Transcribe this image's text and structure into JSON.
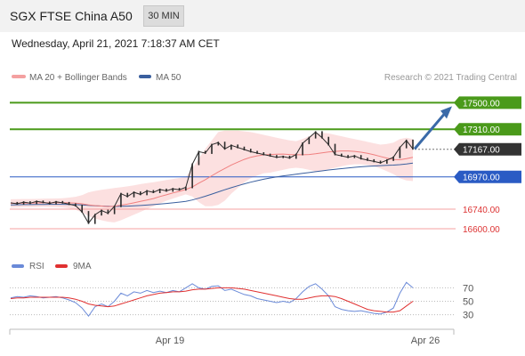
{
  "header": {
    "title": "SGX FTSE China A50",
    "timeframe_button": "30 MIN",
    "datetime": "Wednesday, April 21, 2021 7:18:37 AM CET"
  },
  "legend": {
    "ma20_bollinger": "MA 20 + Bollinger Bands",
    "ma50": "MA 50",
    "credit": "Research © 2021 Trading Central"
  },
  "rsi_legend": {
    "rsi": "RSI",
    "ma9": "9MA"
  },
  "colors": {
    "price": "#555555",
    "ma20": "#f08080",
    "band_fill": "#fbd5d5",
    "ma50": "#3a5f9e",
    "resistance": "#4a9a1a",
    "support": "#2a5bc4",
    "target_low": "#f4a0a0",
    "current": "#333333",
    "arrow": "#3a6aa8",
    "rsi": "#6a8ad8",
    "rsi_ma": "#e03030"
  },
  "chart_data": [
    {
      "type": "line",
      "title": "",
      "x_labels": [
        "Apr 19",
        "Apr 26"
      ],
      "levels": [
        {
          "value": 17500,
          "label": "17500.00",
          "kind": "resistance"
        },
        {
          "value": 17310,
          "label": "17310.00",
          "kind": "resistance"
        },
        {
          "value": 17167,
          "label": "17167.00",
          "kind": "current"
        },
        {
          "value": 16970,
          "label": "16970.00",
          "kind": "support"
        },
        {
          "value": 16740,
          "label": "16740.00",
          "kind": "target_low"
        },
        {
          "value": 16600,
          "label": "16600.00",
          "kind": "target_low"
        }
      ],
      "ylim": [
        16530,
        17610
      ],
      "series": [
        {
          "name": "Price",
          "values": [
            16785,
            16778,
            16790,
            16782,
            16795,
            16788,
            16780,
            16792,
            16785,
            16775,
            16765,
            16720,
            16640,
            16700,
            16730,
            16710,
            16760,
            16850,
            16830,
            16860,
            16845,
            16870,
            16860,
            16880,
            16870,
            16885,
            16878,
            16895,
            17060,
            17150,
            17140,
            17200,
            17215,
            17170,
            17195,
            17180,
            17165,
            17150,
            17140,
            17130,
            17120,
            17110,
            17115,
            17105,
            17130,
            17210,
            17250,
            17290,
            17250,
            17200,
            17130,
            17120,
            17110,
            17120,
            17100,
            17090,
            17080,
            17070,
            17090,
            17110,
            17180,
            17230,
            17170
          ]
        },
        {
          "name": "MA 20",
          "values": [
            16780,
            16782,
            16783,
            16783,
            16784,
            16785,
            16785,
            16786,
            16786,
            16785,
            16783,
            16778,
            16770,
            16765,
            16762,
            16758,
            16760,
            16768,
            16775,
            16785,
            16795,
            16805,
            16815,
            16830,
            16842,
            16855,
            16867,
            16880,
            16898,
            16925,
            16950,
            16978,
            17005,
            17030,
            17055,
            17075,
            17095,
            17110,
            17120,
            17127,
            17130,
            17132,
            17133,
            17130,
            17128,
            17128,
            17130,
            17135,
            17142,
            17148,
            17152,
            17155,
            17155,
            17152,
            17146,
            17138,
            17128,
            17116,
            17104,
            17094,
            17092,
            17100,
            17110
          ]
        },
        {
          "name": "Bollinger Upper",
          "values": [
            16810,
            16811,
            16812,
            16812,
            16813,
            16814,
            16815,
            16816,
            16818,
            16822,
            16828,
            16840,
            16860,
            16870,
            16878,
            16884,
            16890,
            16896,
            16902,
            16910,
            16918,
            16925,
            16932,
            16940,
            16948,
            16955,
            16962,
            16970,
            17030,
            17100,
            17170,
            17230,
            17290,
            17300,
            17300,
            17300,
            17295,
            17290,
            17280,
            17270,
            17260,
            17250,
            17240,
            17230,
            17225,
            17240,
            17260,
            17280,
            17285,
            17280,
            17270,
            17260,
            17250,
            17240,
            17230,
            17220,
            17210,
            17200,
            17205,
            17215,
            17240,
            17250,
            17240
          ]
        },
        {
          "name": "Bollinger Lower",
          "values": [
            16750,
            16752,
            16754,
            16754,
            16755,
            16756,
            16755,
            16754,
            16752,
            16746,
            16736,
            16716,
            16690,
            16672,
            16660,
            16650,
            16645,
            16660,
            16680,
            16700,
            16720,
            16740,
            16760,
            16780,
            16800,
            16815,
            16830,
            16845,
            16830,
            16790,
            16760,
            16760,
            16770,
            16800,
            16850,
            16890,
            16930,
            16960,
            16980,
            16995,
            17000,
            17010,
            17020,
            17030,
            17035,
            17030,
            17020,
            17010,
            17015,
            17025,
            17035,
            17045,
            17055,
            17060,
            17060,
            17055,
            17045,
            17030,
            17010,
            16990,
            16960,
            16945,
            16940
          ]
        },
        {
          "name": "MA 50",
          "values": [
            16770,
            16771,
            16772,
            16772,
            16773,
            16773,
            16774,
            16774,
            16774,
            16773,
            16772,
            16770,
            16767,
            16764,
            16762,
            16760,
            16759,
            16760,
            16761,
            16763,
            16766,
            16769,
            16772,
            16776,
            16780,
            16785,
            16790,
            16795,
            16805,
            16818,
            16832,
            16847,
            16863,
            16878,
            16893,
            16907,
            16920,
            16932,
            16943,
            16953,
            16962,
            16970,
            16977,
            16983,
            16989,
            16995,
            17001,
            17007,
            17013,
            17019,
            17024,
            17029,
            17034,
            17038,
            17042,
            17045,
            17048,
            17050,
            17052,
            17054,
            17057,
            17062,
            17068
          ]
        }
      ]
    },
    {
      "type": "line",
      "title": "",
      "y_ticks": [
        70,
        50,
        30
      ],
      "ylim": [
        15,
        85
      ],
      "series": [
        {
          "name": "RSI",
          "values": [
            55,
            57,
            56,
            58,
            57,
            55,
            56,
            57,
            55,
            52,
            48,
            40,
            28,
            42,
            46,
            42,
            50,
            62,
            58,
            64,
            62,
            66,
            63,
            65,
            63,
            66,
            64,
            70,
            76,
            70,
            68,
            72,
            73,
            66,
            68,
            64,
            60,
            58,
            54,
            52,
            50,
            48,
            50,
            48,
            54,
            64,
            72,
            76,
            68,
            58,
            42,
            38,
            36,
            35,
            36,
            34,
            32,
            31,
            34,
            40,
            62,
            78,
            70
          ]
        },
        {
          "name": "9MA",
          "values": [
            54,
            55,
            55,
            56,
            56,
            56,
            56,
            56,
            56,
            55,
            53,
            50,
            46,
            44,
            43,
            42,
            43,
            46,
            49,
            52,
            55,
            58,
            60,
            62,
            63,
            64,
            64,
            65,
            67,
            68,
            68,
            69,
            70,
            70,
            70,
            69,
            68,
            66,
            64,
            62,
            60,
            58,
            56,
            54,
            53,
            53,
            55,
            57,
            58,
            58,
            57,
            54,
            50,
            46,
            42,
            38,
            36,
            35,
            34,
            34,
            36,
            43,
            50
          ]
        }
      ]
    }
  ]
}
